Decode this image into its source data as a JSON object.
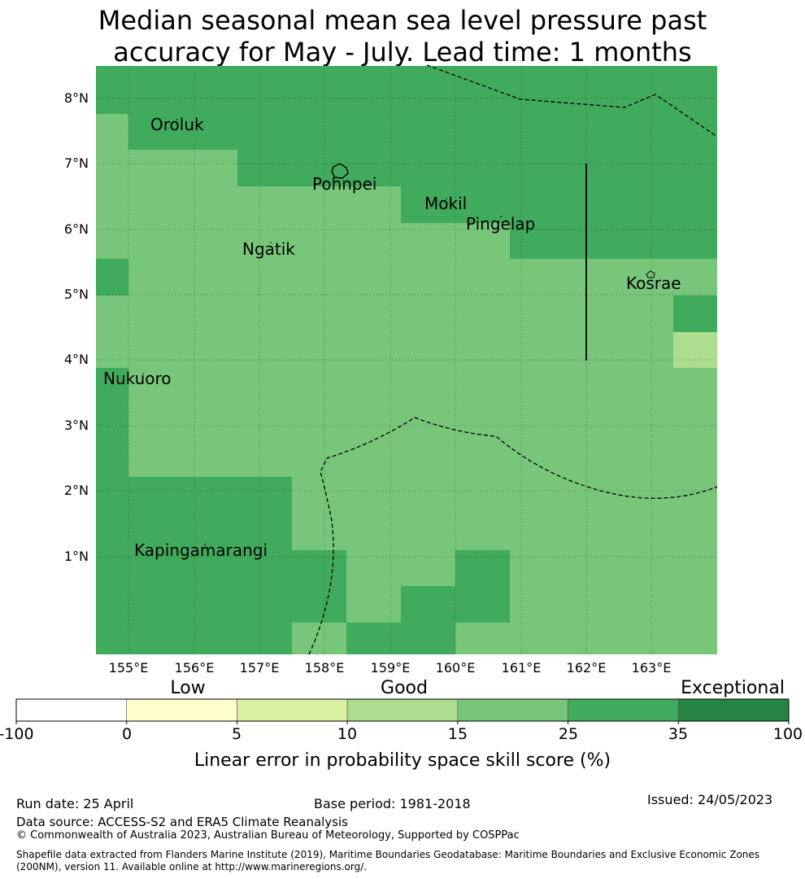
{
  "title": {
    "line1": "Median seasonal mean sea level pressure past",
    "line2": "accuracy for May - July. Lead time: 1 months"
  },
  "map": {
    "lat_labels": [
      "8°N",
      "7°N",
      "6°N",
      "5°N",
      "4°N",
      "3°N",
      "2°N",
      "1°N"
    ],
    "lon_labels": [
      "155°E",
      "156°E",
      "157°E",
      "158°E",
      "159°E",
      "160°E",
      "161°E",
      "162°E",
      "163°E"
    ],
    "places": [
      "Oroluk",
      "Pohnpei",
      "Mokil",
      "Pingelap",
      "Ngatik",
      "Kosrae",
      "Nukuoro",
      "Kapingamarangi"
    ]
  },
  "legend": {
    "category_labels": [
      "Low",
      "Good",
      "Exceptional"
    ],
    "tick_labels": [
      "-100",
      "0",
      "5",
      "10",
      "15",
      "25",
      "35",
      "100"
    ],
    "colors": [
      "#ffffff",
      "#ffffcc",
      "#d9f0a3",
      "#addd8e",
      "#78c679",
      "#41ab5d",
      "#238443"
    ],
    "title": "Linear error in probability space skill score (%)"
  },
  "footer": {
    "run_date": "Run date: 25 April",
    "base_period": "Base period: 1981-2018",
    "issued": "Issued: 24/05/2023",
    "data_source": "Data source: ACCESS-S2 and ERA5 Climate Reanalysis",
    "copyright": "© Commonwealth of Australia 2023, Australian Bureau of Meteorology, Supported by COSPPac",
    "shapefile_line1": "Shapefile data extracted from Flanders Marine Institute (2019), Maritime Boundaries Geodatabase: Maritime Boundaries and Exclusive Economic Zones",
    "shapefile_line2": "(200NM), version 11. Available online at http://www.marineregions.org/."
  }
}
